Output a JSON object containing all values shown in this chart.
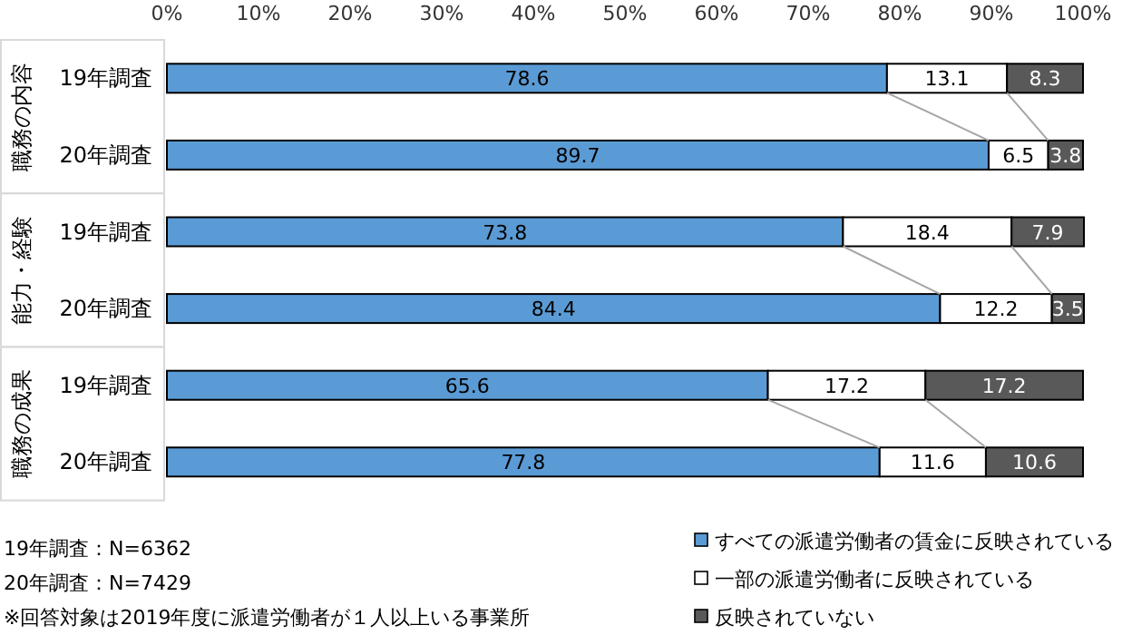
{
  "chart_data": {
    "type": "bar",
    "orientation": "horizontal",
    "stacked": true,
    "data_labels": true,
    "grid": false,
    "legend": "bottom right",
    "categories": [
      "19年調査",
      "20年調査",
      "19年調査",
      "20年調査",
      "19年調査",
      "20年調査"
    ],
    "series": [
      {
        "name": "すべての派遣労働者の賃金に反映されている",
        "color": "#5b9bd5",
        "values": [
          78.6,
          89.7,
          73.8,
          84.4,
          65.6,
          77.8
        ]
      },
      {
        "name": "一部の派遣労働者に反映されている",
        "color": "#ffffff",
        "values": [
          13.1,
          6.5,
          18.4,
          12.2,
          17.2,
          11.6
        ]
      },
      {
        "name": "反映されていない",
        "color": "#595959",
        "values": [
          8.3,
          3.8,
          7.9,
          3.5,
          17.2,
          10.6
        ]
      }
    ],
    "xlim": [
      0,
      100
    ],
    "xticks": [
      {
        "value": 0,
        "label": "0%"
      },
      {
        "value": 10,
        "label": "10%"
      },
      {
        "value": 20,
        "label": "20%"
      },
      {
        "value": 30,
        "label": "30%"
      },
      {
        "value": 40,
        "label": "40%"
      },
      {
        "value": 50,
        "label": "50%"
      },
      {
        "value": 60,
        "label": "60%"
      },
      {
        "value": 70,
        "label": "70%"
      },
      {
        "value": 80,
        "label": "80%"
      },
      {
        "value": 90,
        "label": "90%"
      },
      {
        "value": 100,
        "label": "100%"
      }
    ],
    "annotations": [
      "職務の内容",
      "能力・経験",
      "職務の成果",
      "19年調査：N=6362",
      "20年調査：N=7429",
      "※回答対象は2019年度に派遣労働者が１人以上いる事業所"
    ]
  }
}
